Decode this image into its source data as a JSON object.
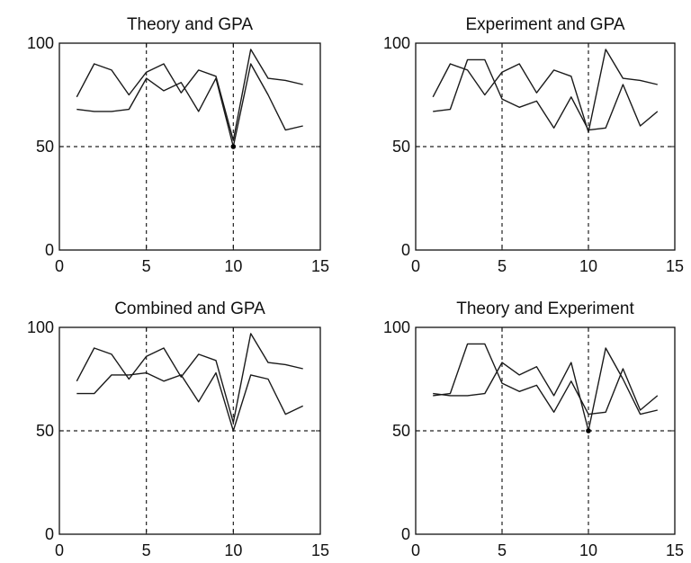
{
  "chart_data": [
    {
      "type": "line",
      "title": "Theory and GPA",
      "xlim": [
        0,
        15
      ],
      "ylim": [
        0,
        100
      ],
      "xticks": [
        "0",
        "5",
        "10",
        "15"
      ],
      "yticks": [
        "0",
        "50",
        "100"
      ],
      "grid": "dashed at x=5, x=10, y=50",
      "x": [
        1,
        2,
        3,
        4,
        5,
        6,
        7,
        8,
        9,
        10,
        11,
        12,
        13,
        14
      ],
      "series": [
        {
          "values": [
            74,
            90,
            87,
            75,
            86,
            90,
            76,
            87,
            84,
            53,
            97,
            83,
            82,
            80
          ]
        },
        {
          "values": [
            68,
            67,
            67,
            68,
            83,
            77,
            81,
            67,
            83,
            50,
            90,
            75,
            58,
            60
          ]
        }
      ],
      "markers": [
        {
          "x": 10,
          "y": 50
        }
      ]
    },
    {
      "type": "line",
      "title": "Experiment and GPA",
      "xlim": [
        0,
        15
      ],
      "ylim": [
        0,
        100
      ],
      "xticks": [
        "0",
        "5",
        "10",
        "15"
      ],
      "yticks": [
        "0",
        "50",
        "100"
      ],
      "grid": "dashed at x=5, x=10, y=50",
      "x": [
        1,
        2,
        3,
        4,
        5,
        6,
        7,
        8,
        9,
        10,
        11,
        12,
        13,
        14
      ],
      "series": [
        {
          "values": [
            74,
            90,
            87,
            75,
            86,
            90,
            76,
            87,
            84,
            57,
            97,
            83,
            82,
            80
          ]
        },
        {
          "values": [
            67,
            68,
            92,
            92,
            73,
            69,
            72,
            59,
            74,
            58,
            59,
            80,
            60,
            67
          ]
        }
      ]
    },
    {
      "type": "line",
      "title": "Combined and GPA",
      "xlim": [
        0,
        15
      ],
      "ylim": [
        0,
        100
      ],
      "xticks": [
        "0",
        "5",
        "10",
        "15"
      ],
      "yticks": [
        "0",
        "50",
        "100"
      ],
      "grid": "dashed at x=5, x=10, y=50",
      "x": [
        1,
        2,
        3,
        4,
        5,
        6,
        7,
        8,
        9,
        10,
        11,
        12,
        13,
        14
      ],
      "series": [
        {
          "values": [
            74,
            90,
            87,
            75,
            86,
            90,
            76,
            87,
            84,
            54,
            97,
            83,
            82,
            80
          ]
        },
        {
          "values": [
            68,
            68,
            77,
            77,
            78,
            74,
            77,
            64,
            78,
            50,
            77,
            75,
            58,
            62
          ]
        }
      ]
    },
    {
      "type": "line",
      "title": "Theory and Experiment",
      "xlim": [
        0,
        15
      ],
      "ylim": [
        0,
        100
      ],
      "xticks": [
        "0",
        "5",
        "10",
        "15"
      ],
      "yticks": [
        "0",
        "50",
        "100"
      ],
      "grid": "dashed at x=5, x=10, y=50",
      "x": [
        1,
        2,
        3,
        4,
        5,
        6,
        7,
        8,
        9,
        10,
        11,
        12,
        13,
        14
      ],
      "series": [
        {
          "values": [
            67,
            68,
            92,
            92,
            73,
            69,
            72,
            59,
            74,
            58,
            59,
            80,
            60,
            67
          ]
        },
        {
          "values": [
            68,
            67,
            67,
            68,
            83,
            77,
            81,
            67,
            83,
            50,
            90,
            75,
            58,
            60
          ]
        }
      ],
      "markers": [
        {
          "x": 10,
          "y": 50
        }
      ]
    }
  ]
}
